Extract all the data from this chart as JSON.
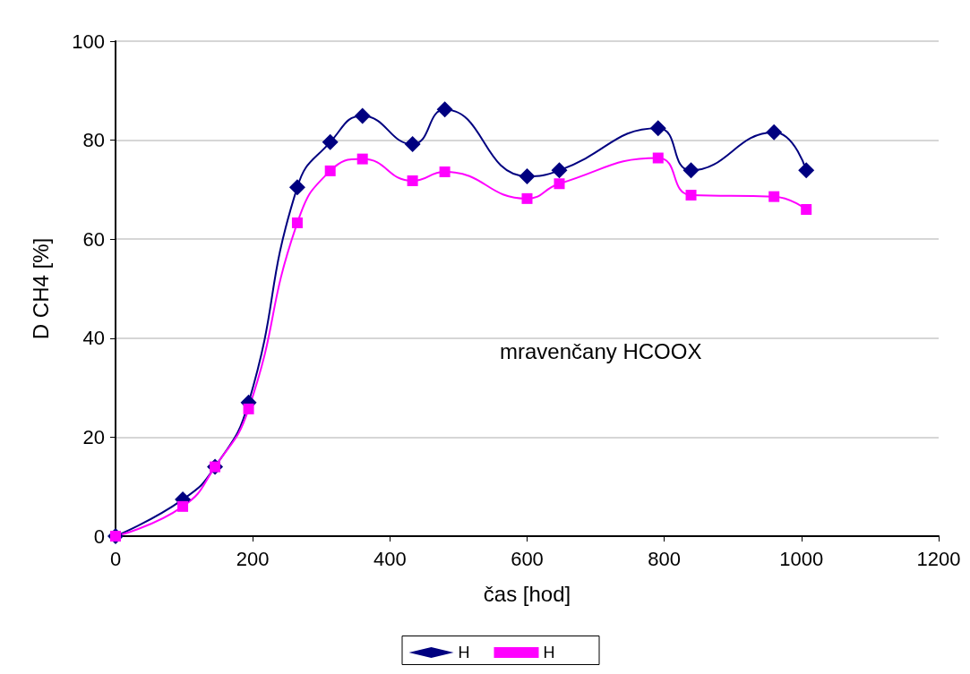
{
  "chart_data": {
    "type": "line",
    "xlabel": "čas [hod]",
    "ylabel": "D CH4 [%]",
    "annotations": [
      "mravenčany HCOOX"
    ],
    "xlim": [
      0,
      1200
    ],
    "xticks": [
      0,
      200,
      400,
      600,
      800,
      1000,
      1200
    ],
    "ylim": [
      0,
      100
    ],
    "yticks": [
      0,
      20,
      40,
      60,
      80,
      100
    ],
    "grid": "y",
    "legend": "bottom",
    "line_style": "solid",
    "x": [
      0,
      98,
      145,
      194,
      265,
      313,
      360,
      433,
      480,
      600,
      647,
      791,
      839,
      960,
      1007
    ],
    "series": [
      {
        "name": "H",
        "color": "#000080",
        "marker": "diamond",
        "values": [
          0,
          7.4,
          14,
          27,
          70.5,
          79.6,
          84.9,
          79.2,
          86.2,
          72.7,
          73.9,
          82.4,
          73.9,
          81.6,
          73.9
        ]
      },
      {
        "name": "H",
        "color": "#ff00ff",
        "marker": "square",
        "values": [
          0,
          6,
          14,
          25.7,
          63.3,
          73.8,
          76.2,
          71.8,
          73.6,
          68.2,
          71.2,
          76.4,
          68.9,
          68.6,
          66.0
        ]
      }
    ]
  }
}
